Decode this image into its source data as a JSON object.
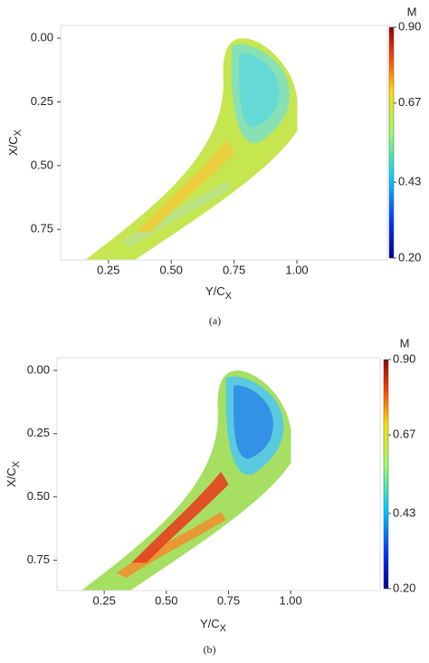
{
  "chart_data": [
    {
      "type": "heatmap",
      "caption": "(a)",
      "xlabel": "Y/C",
      "xlabel_sub": "X",
      "ylabel": "X/C",
      "ylabel_sub": "X",
      "xlim": [
        0.06,
        1.36
      ],
      "xticks": [
        0.25,
        {
          "value": 0.5,
          "label": "0.50"
        },
        0.75,
        {
          "value": 1,
          "label": "1.00"
        }
      ],
      "ylim": [
        -0.05,
        0.87
      ],
      "yticks": [
        {
          "value": 0,
          "label": "0.00"
        },
        0.25,
        {
          "value": 0.5,
          "label": "0.50"
        },
        0.75
      ],
      "colorbar": {
        "label": "M",
        "lim": [
          0.2,
          0.9
        ],
        "ticks": [
          {
            "value": 0.9,
            "label": "0.90"
          },
          0.67,
          0.43,
          {
            "value": 0.2,
            "label": "0.20"
          }
        ]
      }
    },
    {
      "type": "heatmap",
      "caption": "(b)",
      "xlabel": "Y/C",
      "xlabel_sub": "X",
      "ylabel": "X/C",
      "ylabel_sub": "X",
      "xlim": [
        0.06,
        1.36
      ],
      "xticks": [
        0.25,
        {
          "value": 0.5,
          "label": "0.50"
        },
        0.75,
        {
          "value": 1,
          "label": "1.00"
        }
      ],
      "ylim": [
        -0.05,
        0.87
      ],
      "yticks": [
        {
          "value": 0,
          "label": "0.00"
        },
        0.25,
        {
          "value": 0.5,
          "label": "0.50"
        },
        0.75
      ],
      "colorbar": {
        "label": "M",
        "lim": [
          0.2,
          0.9
        ],
        "ticks": [
          {
            "value": 0.9,
            "label": "0.90"
          },
          0.67,
          0.43,
          {
            "value": 0.2,
            "label": "0.20"
          }
        ]
      }
    }
  ]
}
